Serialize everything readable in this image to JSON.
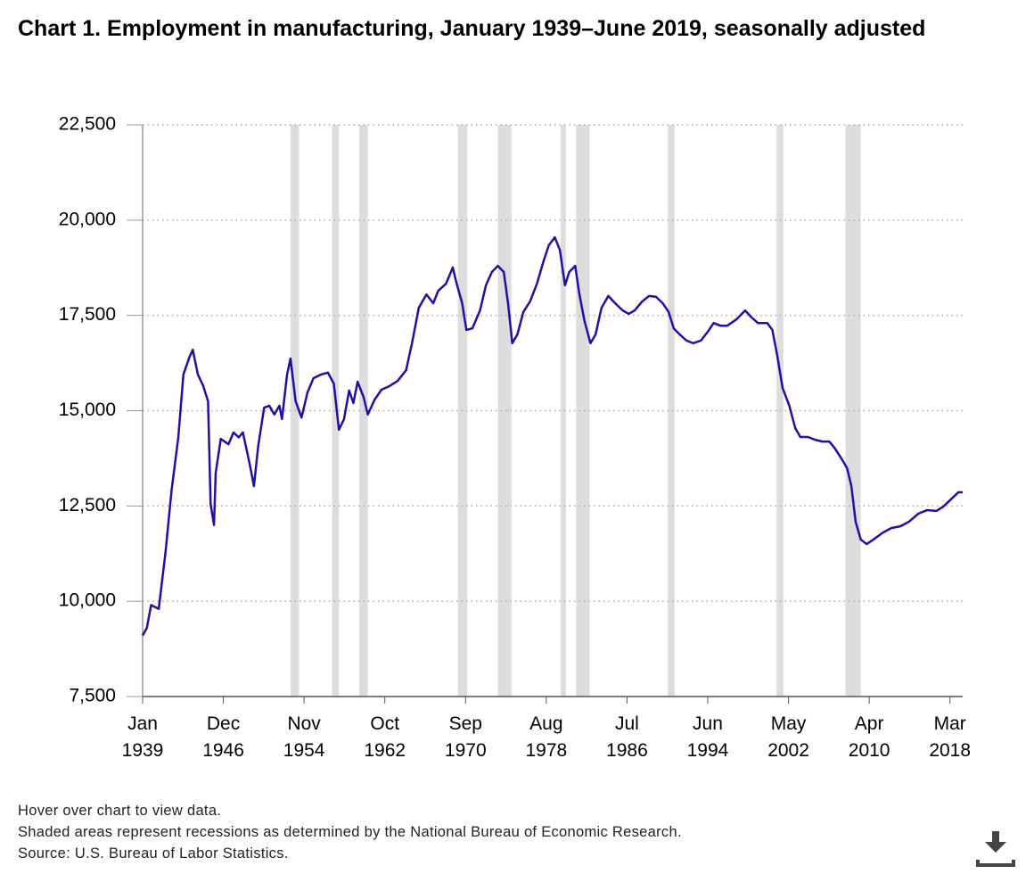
{
  "chart_data": {
    "type": "line",
    "title": "Chart 1. Employment in manufacturing, January 1939–June 2019, seasonally adjusted",
    "color": "#1f10a6",
    "x": [
      "1939-01",
      "1939-06",
      "1939-11",
      "1940-08",
      "1941-04",
      "1941-11",
      "1942-07",
      "1943-01",
      "1943-08",
      "1943-12",
      "1944-06",
      "1944-12",
      "1945-06",
      "1945-09",
      "1946-01",
      "1946-03",
      "1946-09",
      "1947-06",
      "1947-12",
      "1948-06",
      "1948-11",
      "1949-07",
      "1949-12",
      "1950-05",
      "1950-12",
      "1951-06",
      "1951-12",
      "1952-06",
      "1952-09",
      "1953-03",
      "1953-07",
      "1954-01",
      "1954-08",
      "1955-03",
      "1955-10",
      "1956-07",
      "1957-03",
      "1957-10",
      "1958-04",
      "1958-10",
      "1959-04",
      "1959-09",
      "1960-02",
      "1960-09",
      "1961-02",
      "1961-10",
      "1962-06",
      "1963-03",
      "1964-01",
      "1964-11",
      "1965-06",
      "1966-02",
      "1966-11",
      "1967-07",
      "1968-01",
      "1968-10",
      "1969-06",
      "1969-10",
      "1970-05",
      "1970-10",
      "1971-05",
      "1972-02",
      "1972-09",
      "1973-04",
      "1973-11",
      "1974-06",
      "1974-11",
      "1975-04",
      "1975-10",
      "1976-05",
      "1977-01",
      "1977-09",
      "1978-05",
      "1978-11",
      "1979-06",
      "1979-12",
      "1980-06",
      "1980-11",
      "1981-06",
      "1981-11",
      "1982-05",
      "1982-12",
      "1983-06",
      "1984-01",
      "1984-09",
      "1985-05",
      "1986-02",
      "1986-09",
      "1987-04",
      "1988-01",
      "1988-09",
      "1989-05",
      "1990-01",
      "1990-08",
      "1991-02",
      "1991-09",
      "1992-05",
      "1993-01",
      "1993-10",
      "1994-06",
      "1995-01",
      "1995-09",
      "1996-05",
      "1997-04",
      "1998-02",
      "1998-09",
      "1999-05",
      "2000-04",
      "2000-10",
      "2001-04",
      "2001-10",
      "2002-06",
      "2003-01",
      "2003-07",
      "2004-04",
      "2004-12",
      "2005-09",
      "2006-05",
      "2006-11",
      "2007-08",
      "2008-02",
      "2008-07",
      "2008-12",
      "2009-06",
      "2010-01",
      "2010-09",
      "2011-08",
      "2012-06",
      "2013-05",
      "2014-03",
      "2015-02",
      "2015-12",
      "2016-11",
      "2017-07",
      "2018-04",
      "2019-01",
      "2019-06"
    ],
    "values": [
      9100,
      9300,
      9900,
      9800,
      11300,
      12900,
      14300,
      15950,
      16400,
      16600,
      15950,
      15670,
      15250,
      12550,
      12000,
      13370,
      14260,
      14120,
      14430,
      14300,
      14430,
      13600,
      13020,
      14070,
      15080,
      15130,
      14900,
      15130,
      14780,
      15950,
      16370,
      15250,
      14820,
      15480,
      15850,
      15950,
      16000,
      15710,
      14500,
      14780,
      15530,
      15200,
      15760,
      15360,
      14900,
      15290,
      15550,
      15640,
      15780,
      16060,
      16770,
      17700,
      18050,
      17820,
      18150,
      18330,
      18760,
      18380,
      17820,
      17120,
      17160,
      17630,
      18290,
      18640,
      18800,
      18640,
      17820,
      16770,
      17000,
      17590,
      17870,
      18330,
      18940,
      19340,
      19550,
      19220,
      18290,
      18640,
      18800,
      18050,
      17350,
      16770,
      17000,
      17700,
      18010,
      17820,
      17630,
      17540,
      17630,
      17870,
      18010,
      17990,
      17820,
      17590,
      17160,
      17000,
      16840,
      16770,
      16840,
      17070,
      17300,
      17230,
      17230,
      17400,
      17630,
      17460,
      17300,
      17300,
      17120,
      16420,
      15600,
      15130,
      14540,
      14310,
      14310,
      14240,
      14190,
      14190,
      14030,
      13720,
      13490,
      13020,
      12090,
      11620,
      11500,
      11620,
      11800,
      11920,
      11970,
      12090,
      12300,
      12390,
      12370,
      12480,
      12670,
      12860,
      12860
    ],
    "recessions": [
      {
        "start": "1953-07",
        "end": "1954-05"
      },
      {
        "start": "1957-08",
        "end": "1958-04"
      },
      {
        "start": "1960-04",
        "end": "1961-02"
      },
      {
        "start": "1969-12",
        "end": "1970-11"
      },
      {
        "start": "1973-11",
        "end": "1975-03"
      },
      {
        "start": "1980-01",
        "end": "1980-07"
      },
      {
        "start": "1981-07",
        "end": "1982-11"
      },
      {
        "start": "1990-07",
        "end": "1991-03"
      },
      {
        "start": "2001-03",
        "end": "2001-11"
      },
      {
        "start": "2007-12",
        "end": "2009-06"
      }
    ],
    "recession_color": "#dddddd",
    "xlim": [
      "1939-01",
      "2019-06"
    ],
    "xticks": [
      {
        "value": "1939-01",
        "label": "Jan 1939"
      },
      {
        "value": "1946-12",
        "label": "Dec 1946"
      },
      {
        "value": "1954-11",
        "label": "Nov 1954"
      },
      {
        "value": "1962-10",
        "label": "Oct 1962"
      },
      {
        "value": "1970-09",
        "label": "Sep 1970"
      },
      {
        "value": "1978-08",
        "label": "Aug 1978"
      },
      {
        "value": "1986-07",
        "label": "Jul 1986"
      },
      {
        "value": "1994-06",
        "label": "Jun 1994"
      },
      {
        "value": "2002-05",
        "label": "May 2002"
      },
      {
        "value": "2010-04",
        "label": "Apr 2010"
      },
      {
        "value": "2018-03",
        "label": "Mar 2018"
      }
    ],
    "ylim": [
      7500,
      22500
    ],
    "yticks": [
      {
        "value": 7500,
        "label": "7,500"
      },
      {
        "value": 10000,
        "label": "10,000"
      },
      {
        "value": 12500,
        "label": "12,500"
      },
      {
        "value": 15000,
        "label": "15,000"
      },
      {
        "value": 17500,
        "label": "17,500"
      },
      {
        "value": 20000,
        "label": "20,000"
      },
      {
        "value": 22500,
        "label": "22,500"
      }
    ],
    "grid": true,
    "notes": [
      "Hover over chart to view data.",
      "Shaded areas represent recessions as determined by the National Bureau of Economic Research.",
      "Source: U.S. Bureau of Labor Statistics."
    ]
  }
}
